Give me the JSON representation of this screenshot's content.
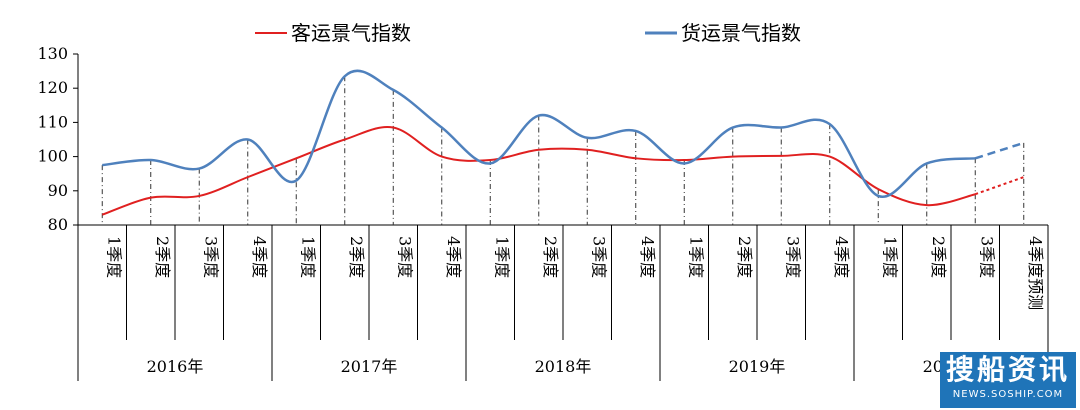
{
  "chart_data": {
    "type": "line",
    "ylim": [
      80,
      130
    ],
    "yticks": [
      80,
      90,
      100,
      110,
      120,
      130
    ],
    "categories": [
      "1季度",
      "2季度",
      "3季度",
      "4季度",
      "1季度",
      "2季度",
      "3季度",
      "4季度",
      "1季度",
      "2季度",
      "3季度",
      "4季度",
      "1季度",
      "2季度",
      "3季度",
      "4季度",
      "1季度",
      "2季度",
      "3季度",
      "4季度预测"
    ],
    "years": [
      {
        "label": "2016年",
        "span": 4
      },
      {
        "label": "2017年",
        "span": 4
      },
      {
        "label": "2018年",
        "span": 4
      },
      {
        "label": "2019年",
        "span": 4
      },
      {
        "label": "2020年",
        "span": 4
      }
    ],
    "series": [
      {
        "name": "客运景气指数",
        "color": "#e02020",
        "values": [
          83,
          88,
          88.5,
          94,
          99.5,
          105,
          108.5,
          100,
          99,
          102,
          102,
          99.5,
          99,
          100,
          100.2,
          100,
          90.5,
          85.8,
          89,
          94
        ],
        "forecast_from": 18
      },
      {
        "name": "货运景气指数",
        "color": "#4f81bd",
        "values": [
          97.5,
          99,
          96.5,
          105,
          93,
          123.5,
          119.5,
          108.5,
          98,
          112,
          105.5,
          107.5,
          98,
          108.5,
          108.5,
          109.5,
          88.5,
          98,
          99.5,
          104
        ],
        "forecast_from": 18
      }
    ]
  },
  "watermark": {
    "cn": "搜船资讯",
    "url": "NEWS.SOSHIP.COM"
  }
}
